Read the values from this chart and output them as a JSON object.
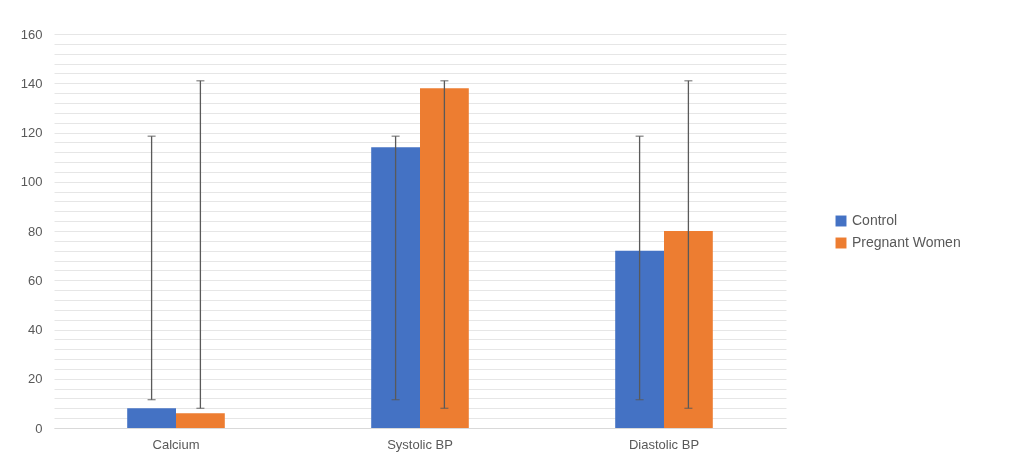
{
  "chart_data": {
    "type": "bar",
    "categories": [
      "Calcium",
      "Systolic BP",
      "Diastolic BP"
    ],
    "series": [
      {
        "name": "Control",
        "color": "#4472c4",
        "values": [
          8,
          114,
          72
        ],
        "errors": [
          [
            11.5,
            118.5
          ],
          [
            11.5,
            118.5
          ],
          [
            11.5,
            118.5
          ]
        ]
      },
      {
        "name": "Pregnant Women",
        "color": "#ed7d31",
        "values": [
          6,
          138,
          80
        ],
        "errors": [
          [
            8,
            141
          ],
          [
            8,
            141
          ],
          [
            8,
            141
          ]
        ]
      }
    ],
    "ylim": [
      0,
      160
    ],
    "yticks": [
      0,
      {
        "value": 4,
        "label": null
      },
      {
        "value": 8,
        "label": null
      },
      {
        "value": 12,
        "label": null
      },
      {
        "value": 16,
        "label": null
      },
      20,
      {
        "value": 24,
        "label": null
      },
      {
        "value": 28,
        "label": null
      },
      {
        "value": 32,
        "label": null
      },
      {
        "value": 36,
        "label": null
      },
      40,
      {
        "value": 44,
        "label": null
      },
      {
        "value": 48,
        "label": null
      },
      {
        "value": 52,
        "label": null
      },
      {
        "value": 56,
        "label": null
      },
      60,
      {
        "value": 64,
        "label": null
      },
      {
        "value": 68,
        "label": null
      },
      {
        "value": 72,
        "label": null
      },
      {
        "value": 76,
        "label": null
      },
      80,
      {
        "value": 84,
        "label": null
      },
      {
        "value": 88,
        "label": null
      },
      {
        "value": 92,
        "label": null
      },
      {
        "value": 96,
        "label": null
      },
      100,
      {
        "value": 104,
        "label": null
      },
      {
        "value": 108,
        "label": null
      },
      {
        "value": 112,
        "label": null
      },
      {
        "value": 116,
        "label": null
      },
      120,
      {
        "value": 124,
        "label": null
      },
      {
        "value": 128,
        "label": null
      },
      {
        "value": 132,
        "label": null
      },
      {
        "value": 136,
        "label": null
      },
      140,
      {
        "value": 144,
        "label": null
      },
      {
        "value": 148,
        "label": null
      },
      {
        "value": 152,
        "label": null
      },
      {
        "value": 156,
        "label": null
      },
      160
    ],
    "grid": "y",
    "legend": "right"
  }
}
